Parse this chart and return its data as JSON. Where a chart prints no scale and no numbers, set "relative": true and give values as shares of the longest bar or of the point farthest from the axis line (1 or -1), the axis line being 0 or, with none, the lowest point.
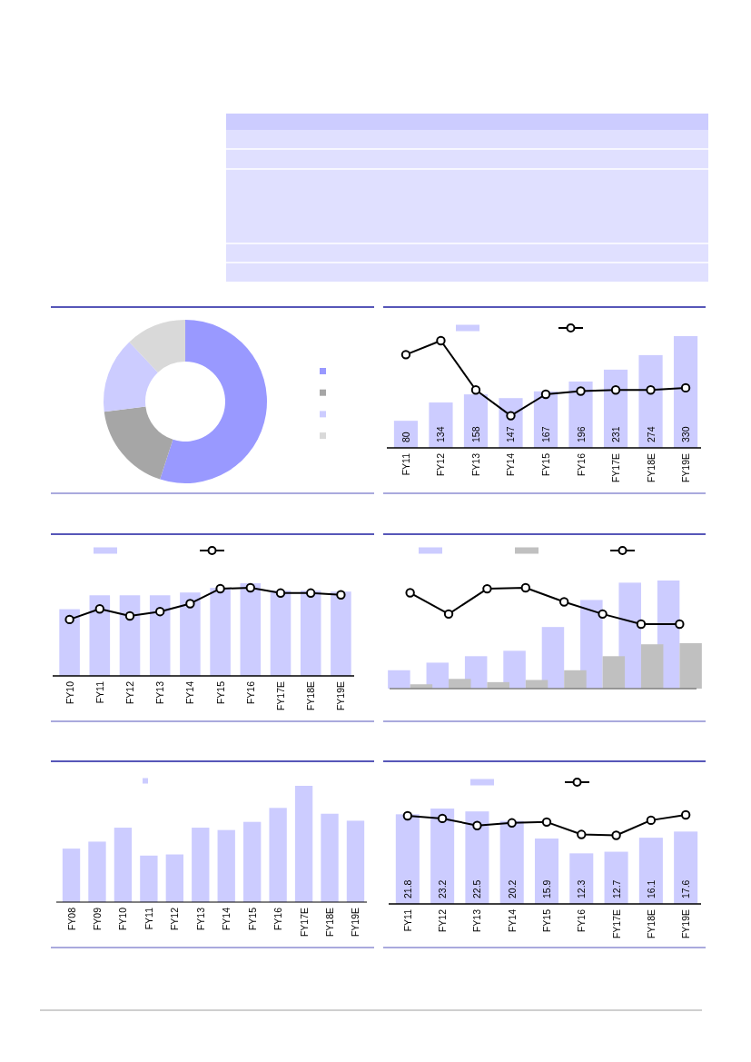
{
  "chart_data": [
    {
      "type": "donut",
      "categories": [
        null,
        null,
        null,
        null
      ],
      "values": [
        55,
        18,
        15,
        12
      ],
      "colors": [
        "#9999ff",
        "#a6a6a6",
        "#ccccff",
        "#d9d9d9"
      ]
    },
    {
      "type": "bar",
      "categories": [
        "FY11",
        "FY12",
        "FY13",
        "FY14",
        "FY15",
        "FY16",
        "FY17E",
        "FY18E",
        "FY19E"
      ],
      "series": [
        {
          "color": "#ccccff",
          "values": [
            80,
            134,
            158,
            147,
            167,
            196,
            231,
            274,
            330
          ],
          "value_labels": [
            "80",
            "134",
            "158",
            "147",
            "167",
            "196",
            "231",
            "274",
            "330"
          ]
        }
      ]
    },
    {
      "type": "line",
      "relative": true,
      "marker": "circle",
      "categories": [
        null,
        null,
        null,
        null,
        null,
        null,
        null,
        null,
        null
      ],
      "series": [
        {
          "color": "#000000",
          "values": [
            0.87,
            1,
            0.54,
            0.3,
            0.5,
            0.53,
            0.54,
            0.54,
            0.56
          ]
        }
      ]
    },
    {
      "type": "bar",
      "relative": true,
      "categories": [
        "FY10",
        "FY11",
        "FY12",
        "FY13",
        "FY14",
        "FY15",
        "FY16",
        "FY17E",
        "FY18E",
        "FY19E"
      ],
      "series": [
        {
          "color": "#ccccff",
          "values": [
            0.72,
            0.87,
            0.87,
            0.87,
            0.9,
            0.95,
            1,
            0.92,
            0.92,
            0.91
          ]
        }
      ]
    },
    {
      "type": "line",
      "relative": true,
      "marker": "circle",
      "categories": [
        null,
        null,
        null,
        null,
        null,
        null,
        null,
        null,
        null,
        null
      ],
      "series": [
        {
          "color": "#000000",
          "values": [
            0.64,
            0.76,
            0.68,
            0.73,
            0.82,
            0.99,
            1,
            0.94,
            0.94,
            0.92
          ]
        }
      ]
    },
    {
      "type": "bar",
      "relative": true,
      "categories": [
        null,
        null,
        null,
        null,
        null,
        null,
        null,
        null
      ],
      "series": [
        {
          "color": "#ccccff",
          "values": [
            0.17,
            0.24,
            0.3,
            0.35,
            0.57,
            0.82,
            0.98,
            1
          ]
        },
        {
          "color": "#c0c0c0",
          "values": [
            0.04,
            0.09,
            0.06,
            0.08,
            0.17,
            0.3,
            0.41,
            0.42
          ]
        }
      ]
    },
    {
      "type": "line",
      "relative": true,
      "marker": "circle",
      "categories": [
        null,
        null,
        null,
        null,
        null,
        null,
        null,
        null
      ],
      "series": [
        {
          "color": "#000000",
          "values": [
            0.95,
            0.74,
            0.99,
            1,
            0.86,
            0.74,
            0.64,
            0.64
          ]
        }
      ]
    },
    {
      "type": "bar",
      "relative": true,
      "categories": [
        "FY08",
        "FY09",
        "FY10",
        "FY11",
        "FY12",
        "FY13",
        "FY14",
        "FY15",
        "FY16",
        "FY17E",
        "FY18E",
        "FY19E"
      ],
      "series": [
        {
          "color": "#ccccff",
          "values": [
            0.46,
            0.52,
            0.64,
            0.4,
            0.41,
            0.64,
            0.62,
            0.69,
            0.81,
            1,
            0.76,
            0.7
          ]
        }
      ]
    },
    {
      "type": "bar",
      "categories": [
        "FY11",
        "FY12",
        "FY13",
        "FY14",
        "FY15",
        "FY16",
        "FY17E",
        "FY18E",
        "FY19E"
      ],
      "series": [
        {
          "color": "#ccccff",
          "values": [
            21.8,
            23.2,
            22.5,
            20.2,
            15.9,
            12.3,
            12.7,
            16.1,
            17.6
          ],
          "value_labels": [
            "21.8",
            "23.2",
            "22.5",
            "20.2",
            "15.9",
            "12.3",
            "12.7",
            "16.1",
            "17.6"
          ]
        }
      ]
    },
    {
      "type": "line",
      "relative": true,
      "marker": "circle",
      "categories": [
        null,
        null,
        null,
        null,
        null,
        null,
        null,
        null,
        null
      ],
      "series": [
        {
          "color": "#000000",
          "values": [
            0.99,
            0.96,
            0.88,
            0.91,
            0.92,
            0.78,
            0.77,
            0.94,
            1
          ]
        }
      ]
    }
  ]
}
